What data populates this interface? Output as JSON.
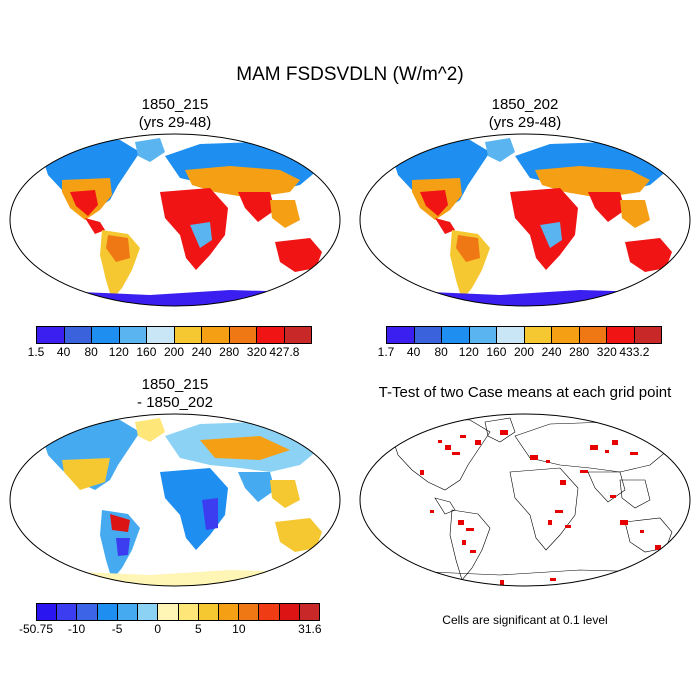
{
  "title": "MAM FSDSVDLN (W/m^2)",
  "panels": {
    "case1": {
      "line1": "1850_215",
      "line2": "(yrs 29-48)"
    },
    "case2": {
      "line1": "1850_202",
      "line2": "(yrs 29-48)"
    },
    "diff": {
      "line1": "1850_215",
      "line2": "- 1850_202"
    },
    "ttest": {
      "line1": "T-Test of two Case means at each grid point"
    }
  },
  "colorbars": {
    "case1": {
      "labels": [
        "1.5",
        "40",
        "80",
        "120",
        "160",
        "200",
        "240",
        "280",
        "320",
        "427.8"
      ],
      "colors": [
        "#3a1ff0",
        "#3b62dd",
        "#1e8ff0",
        "#5ab4f0",
        "#c8e6f5",
        "#f5c832",
        "#f5a014",
        "#f07814",
        "#f01414",
        "#c82828"
      ]
    },
    "case2": {
      "labels": [
        "1.7",
        "40",
        "80",
        "120",
        "160",
        "200",
        "240",
        "280",
        "320",
        "433.2"
      ],
      "colors": [
        "#3a1ff0",
        "#3b62dd",
        "#1e8ff0",
        "#5ab4f0",
        "#c8e6f5",
        "#f5c832",
        "#f5a014",
        "#f07814",
        "#f01414",
        "#c82828"
      ]
    },
    "diff": {
      "labels": [
        "-50.75",
        "-10",
        "-5",
        "0",
        "5",
        "10",
        "31.6"
      ],
      "colors": [
        "#2a14f0",
        "#3c3cf0",
        "#3c64e6",
        "#1e8ff0",
        "#46aaf0",
        "#8cd2f5",
        "#fff5b4",
        "#ffe678",
        "#f5c832",
        "#f5a014",
        "#f07814",
        "#f03c14",
        "#dc1414",
        "#c82828"
      ]
    }
  },
  "ttest_note": "Cells are significant at 0.1 level",
  "ttest_color": "#e60000"
}
